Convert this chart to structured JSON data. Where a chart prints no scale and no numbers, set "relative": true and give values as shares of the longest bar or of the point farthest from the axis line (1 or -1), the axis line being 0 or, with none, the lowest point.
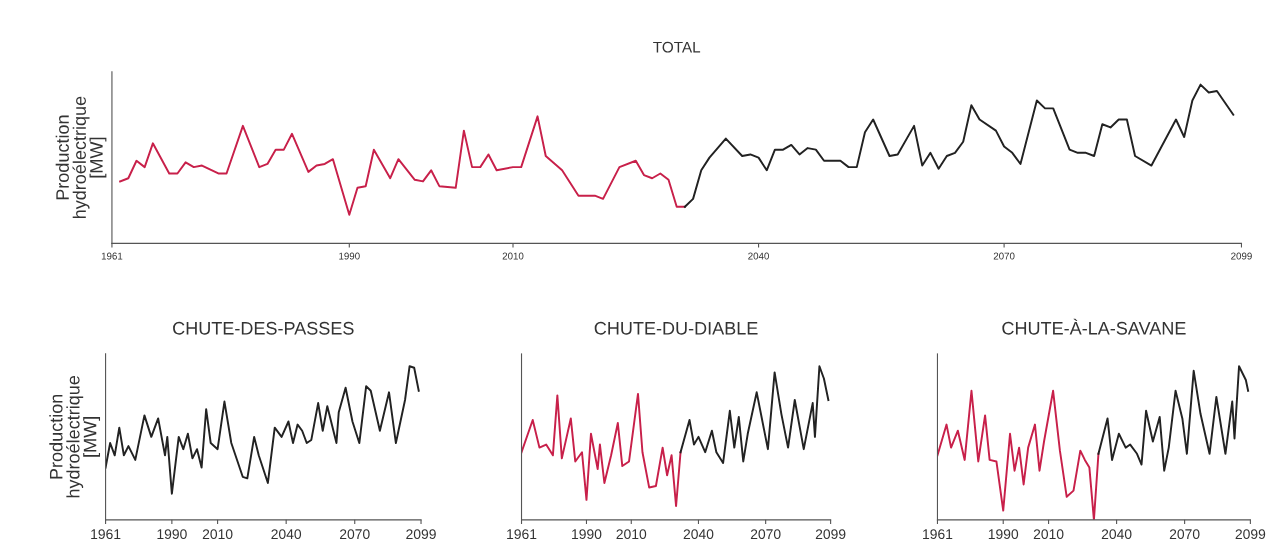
{
  "chart_data": [
    {
      "type": "line",
      "title": "TOTAL",
      "ylabel": "Production\nhydroélectrique\n[MW]",
      "relative": true,
      "xlim": [
        1961,
        2099
      ],
      "xticks": [
        1961,
        1990,
        2010,
        2040,
        2070,
        2099
      ],
      "grid": false,
      "series": [
        {
          "color": "#c8204a",
          "x": [
            1962,
            1963,
            1964,
            1965,
            1966,
            1968,
            1969,
            1970,
            1971,
            1972,
            1974,
            1975,
            1977,
            1979,
            1980,
            1981,
            1982,
            1983,
            1985,
            1986,
            1987,
            1988,
            1990,
            1991,
            1992,
            1993,
            1995,
            1996,
            1998,
            1999,
            2000,
            2001,
            2003,
            2004,
            2005,
            2006,
            2007,
            2008,
            2010,
            2011,
            2013,
            2014,
            2016,
            2018,
            2020,
            2021,
            2023,
            2025,
            2026,
            2027,
            2028,
            2029,
            2030,
            2031
          ],
          "values": [
            0.39,
            0.41,
            0.52,
            0.48,
            0.63,
            0.44,
            0.44,
            0.51,
            0.48,
            0.49,
            0.44,
            0.44,
            0.74,
            0.48,
            0.5,
            0.59,
            0.59,
            0.69,
            0.45,
            0.49,
            0.5,
            0.53,
            0.18,
            0.35,
            0.36,
            0.59,
            0.41,
            0.53,
            0.4,
            0.39,
            0.46,
            0.36,
            0.35,
            0.71,
            0.48,
            0.48,
            0.56,
            0.46,
            0.48,
            0.48,
            0.8,
            0.55,
            0.46,
            0.3,
            0.3,
            0.28,
            0.48,
            0.52,
            0.43,
            0.41,
            0.44,
            0.4,
            0.23,
            0.23
          ]
        },
        {
          "color": "#222222",
          "x": [
            2031,
            2032,
            2033,
            2034,
            2036,
            2038,
            2039,
            2040,
            2041,
            2042,
            2043,
            2044,
            2045,
            2046,
            2047,
            2048,
            2049,
            2050,
            2051,
            2052,
            2053,
            2054,
            2056,
            2057,
            2059,
            2060,
            2061,
            2062,
            2063,
            2064,
            2065,
            2066,
            2067,
            2069,
            2070,
            2071,
            2072,
            2074,
            2075,
            2076,
            2078,
            2079,
            2080,
            2081,
            2082,
            2083,
            2084,
            2085,
            2086,
            2088,
            2091,
            2092,
            2093,
            2094,
            2095,
            2096,
            2098
          ],
          "values": [
            0.23,
            0.28,
            0.46,
            0.54,
            0.66,
            0.55,
            0.56,
            0.54,
            0.46,
            0.59,
            0.59,
            0.62,
            0.56,
            0.6,
            0.59,
            0.52,
            0.52,
            0.52,
            0.48,
            0.48,
            0.7,
            0.78,
            0.55,
            0.56,
            0.74,
            0.49,
            0.57,
            0.47,
            0.55,
            0.57,
            0.64,
            0.87,
            0.78,
            0.71,
            0.61,
            0.57,
            0.5,
            0.9,
            0.85,
            0.85,
            0.59,
            0.57,
            0.57,
            0.55,
            0.75,
            0.73,
            0.78,
            0.78,
            0.55,
            0.49,
            0.78,
            0.67,
            0.9,
            1.0,
            0.95,
            0.96,
            0.81
          ]
        }
      ]
    },
    {
      "type": "line",
      "title": "CHUTE-DES-PASSES",
      "ylabel": "Production\nhydroélectrique\n[MW]",
      "relative": true,
      "xlim": [
        1961,
        2099
      ],
      "xticks": [
        1961,
        1990,
        2010,
        2040,
        2070,
        2099
      ],
      "grid": false,
      "series": [
        {
          "color": "#222222",
          "x": [
            1961,
            1963,
            1965,
            1967,
            1969,
            1971,
            1974,
            1978,
            1981,
            1984,
            1987,
            1988,
            1990,
            1993,
            1995,
            1997,
            1999,
            2001,
            2003,
            2005,
            2007,
            2010,
            2013,
            2016,
            2021,
            2023,
            2026,
            2028,
            2032,
            2035,
            2038,
            2041,
            2043,
            2045,
            2047,
            2049,
            2051,
            2054,
            2056,
            2058,
            2062,
            2063,
            2066,
            2069,
            2072,
            2075,
            2077,
            2081,
            2085,
            2088,
            2092,
            2094,
            2096,
            2098
          ],
          "values": [
            0.34,
            0.5,
            0.42,
            0.6,
            0.42,
            0.48,
            0.39,
            0.68,
            0.54,
            0.66,
            0.42,
            0.54,
            0.17,
            0.54,
            0.46,
            0.56,
            0.4,
            0.46,
            0.34,
            0.72,
            0.5,
            0.46,
            0.77,
            0.5,
            0.28,
            0.27,
            0.54,
            0.42,
            0.24,
            0.6,
            0.54,
            0.64,
            0.5,
            0.62,
            0.58,
            0.5,
            0.52,
            0.76,
            0.58,
            0.74,
            0.5,
            0.7,
            0.86,
            0.64,
            0.5,
            0.87,
            0.84,
            0.58,
            0.83,
            0.5,
            0.78,
            1.0,
            0.99,
            0.84
          ]
        }
      ]
    },
    {
      "type": "line",
      "title": "CHUTE-DU-DIABLE",
      "relative": true,
      "xlim": [
        1961,
        2099
      ],
      "xticks": [
        1961,
        1990,
        2010,
        2040,
        2070,
        2099
      ],
      "grid": false,
      "series": [
        {
          "color": "#c8204a",
          "x": [
            1961,
            1966,
            1969,
            1972,
            1975,
            1977,
            1979,
            1983,
            1985,
            1988,
            1990,
            1992,
            1995,
            1996,
            1998,
            2001,
            2004,
            2006,
            2009,
            2013,
            2015,
            2018,
            2021,
            2024,
            2026,
            2028,
            2030,
            2032
          ],
          "values": [
            0.44,
            0.65,
            0.47,
            0.49,
            0.42,
            0.81,
            0.4,
            0.66,
            0.38,
            0.44,
            0.13,
            0.56,
            0.33,
            0.49,
            0.24,
            0.42,
            0.63,
            0.35,
            0.38,
            0.82,
            0.44,
            0.21,
            0.22,
            0.47,
            0.29,
            0.42,
            0.09,
            0.44
          ]
        },
        {
          "color": "#222222",
          "x": [
            2032,
            2036,
            2038,
            2040,
            2043,
            2046,
            2048,
            2051,
            2054,
            2056,
            2058,
            2060,
            2062,
            2066,
            2071,
            2074,
            2077,
            2080,
            2083,
            2087,
            2091,
            2092,
            2094,
            2096,
            2098
          ],
          "values": [
            0.44,
            0.65,
            0.49,
            0.54,
            0.44,
            0.58,
            0.44,
            0.37,
            0.71,
            0.47,
            0.67,
            0.38,
            0.56,
            0.83,
            0.46,
            0.96,
            0.69,
            0.47,
            0.78,
            0.46,
            0.76,
            0.54,
            1.0,
            0.92,
            0.78
          ]
        }
      ]
    },
    {
      "type": "line",
      "title": "CHUTE-À-LA-SAVANE",
      "relative": true,
      "xlim": [
        1961,
        2099
      ],
      "xticks": [
        1961,
        1990,
        2010,
        2040,
        2070,
        2099
      ],
      "grid": false,
      "series": [
        {
          "color": "#c8204a",
          "x": [
            1961,
            1965,
            1967,
            1970,
            1973,
            1976,
            1979,
            1982,
            1984,
            1987,
            1990,
            1993,
            1995,
            1997,
            1999,
            2001,
            2004,
            2006,
            2008,
            2012,
            2015,
            2018,
            2021,
            2024,
            2026,
            2028,
            2030,
            2032
          ],
          "values": [
            0.42,
            0.62,
            0.47,
            0.58,
            0.39,
            0.84,
            0.38,
            0.68,
            0.39,
            0.38,
            0.06,
            0.56,
            0.32,
            0.47,
            0.23,
            0.47,
            0.62,
            0.32,
            0.51,
            0.84,
            0.45,
            0.15,
            0.19,
            0.45,
            0.39,
            0.34,
            0.0,
            0.43
          ]
        },
        {
          "color": "#222222",
          "x": [
            2032,
            2036,
            2038,
            2041,
            2044,
            2046,
            2049,
            2051,
            2053,
            2056,
            2059,
            2061,
            2063,
            2066,
            2069,
            2071,
            2074,
            2077,
            2081,
            2084,
            2088,
            2091,
            2092,
            2094,
            2097,
            2098
          ],
          "values": [
            0.43,
            0.66,
            0.39,
            0.56,
            0.47,
            0.49,
            0.43,
            0.36,
            0.71,
            0.51,
            0.67,
            0.32,
            0.47,
            0.84,
            0.66,
            0.43,
            0.97,
            0.69,
            0.43,
            0.8,
            0.43,
            0.77,
            0.53,
            1.0,
            0.91,
            0.84
          ]
        }
      ]
    }
  ]
}
